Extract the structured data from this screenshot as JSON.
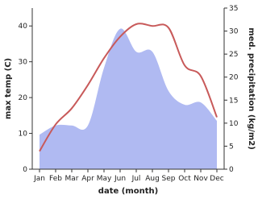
{
  "chart_data": {
    "type": "line_area",
    "categories": [
      "Jan",
      "Feb",
      "Mar",
      "Apr",
      "May",
      "Jun",
      "Jul",
      "Aug",
      "Sep",
      "Oct",
      "Nov",
      "Dec"
    ],
    "xlabel": "date (month)",
    "ylabel": "max temp (C)",
    "y2label": "med. precipitation (kg/m2)",
    "ylim": [
      0,
      45
    ],
    "yticks": [
      0,
      10,
      20,
      30,
      40
    ],
    "y2lim": [
      0,
      35
    ],
    "y2ticks": [
      0,
      5,
      10,
      15,
      20,
      25,
      30,
      35
    ],
    "series": [
      {
        "name": "med. precipitation",
        "color": "#b0baf2",
        "axis": "y2",
        "kind": "area",
        "values": [
          7.5,
          9.5,
          9.5,
          9.5,
          22,
          30.5,
          25.5,
          25.5,
          17,
          14,
          14.5,
          10.5
        ]
      },
      {
        "name": "max temp",
        "color": "#c85a5a",
        "axis": "y",
        "kind": "line",
        "values": [
          5,
          12.5,
          17,
          23.5,
          31,
          37,
          40.5,
          40,
          39.5,
          29,
          26,
          14.5
        ]
      }
    ]
  }
}
